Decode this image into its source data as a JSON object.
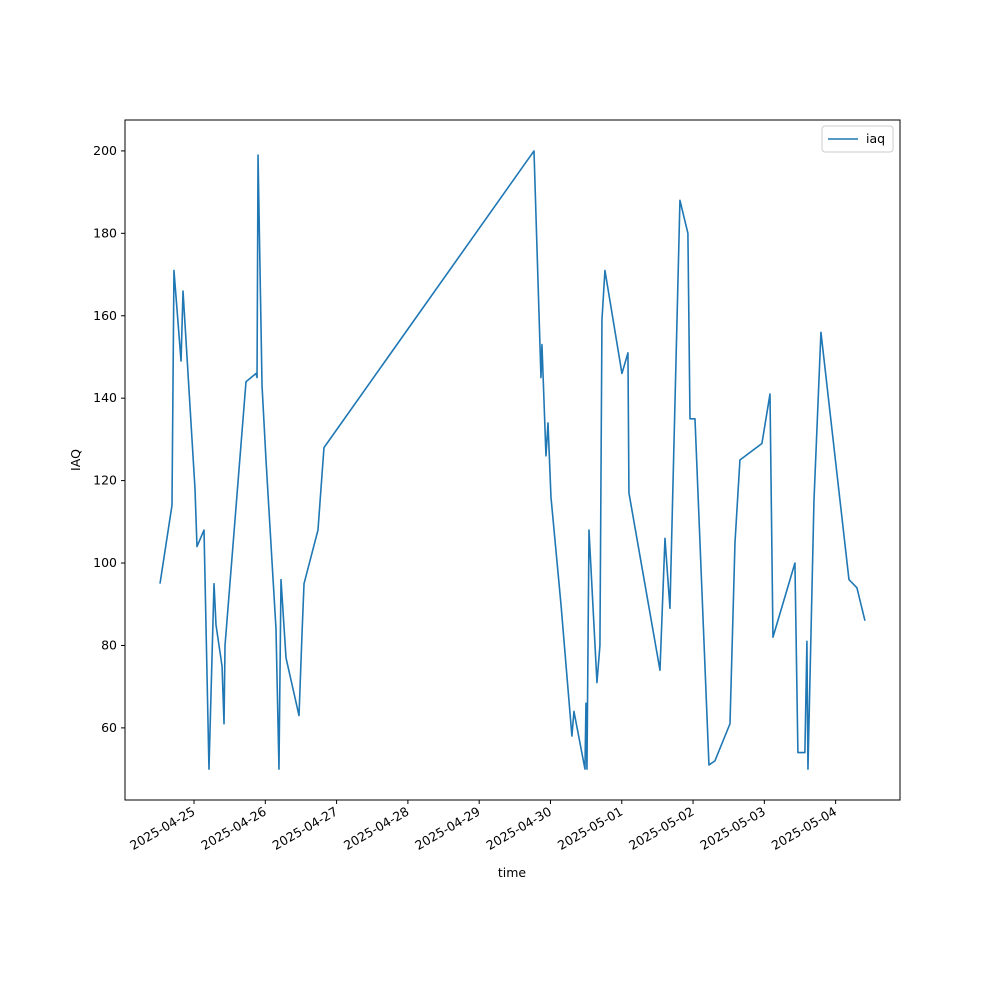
{
  "chart_data": {
    "type": "line",
    "x_label": "time",
    "y_label": "IAQ",
    "x": [
      "2025-04-24T12:33",
      "2025-04-24T16:35",
      "2025-04-24T17:15",
      "2025-04-24T19:38",
      "2025-04-24T20:18",
      "2025-04-25T00:20",
      "2025-04-25T01:00",
      "2025-04-25T03:22",
      "2025-04-25T05:02",
      "2025-04-25T06:44",
      "2025-04-25T07:24",
      "2025-04-25T09:26",
      "2025-04-25T10:06",
      "2025-04-25T10:26",
      "2025-04-25T17:30",
      "2025-04-25T20:53",
      "2025-04-25T21:13",
      "2025-04-25T21:33",
      "2025-04-25T22:54",
      "2025-04-26T00:14",
      "2025-04-26T03:36",
      "2025-04-26T04:36",
      "2025-04-26T05:17",
      "2025-04-26T06:58",
      "2025-04-26T11:21",
      "2025-04-26T12:22",
      "2025-04-26T13:02",
      "2025-04-26T17:44",
      "2025-04-26T19:45",
      "2025-04-29T18:27",
      "2025-04-29T20:48",
      "2025-04-29T21:08",
      "2025-04-29T22:29",
      "2025-04-29T23:10",
      "2025-04-30T00:10",
      "2025-04-30T03:32",
      "2025-04-30T07:13",
      "2025-04-30T07:54",
      "2025-04-30T11:37",
      "2025-04-30T11:57",
      "2025-04-30T12:17",
      "2025-04-30T12:58",
      "2025-04-30T15:39",
      "2025-04-30T16:39",
      "2025-04-30T17:20",
      "2025-04-30T18:20",
      "2025-05-01T00:04",
      "2025-05-01T02:05",
      "2025-05-01T02:25",
      "2025-05-01T12:52",
      "2025-05-01T14:33",
      "2025-05-01T16:13",
      "2025-05-01T19:35",
      "2025-05-01T22:16",
      "2025-05-01T22:58",
      "2025-05-02T00:39",
      "2025-05-02T05:21",
      "2025-05-02T07:22",
      "2025-05-02T12:26",
      "2025-05-02T14:07",
      "2025-05-02T15:47",
      "2025-05-02T23:11",
      "2025-05-03T01:54",
      "2025-05-03T02:54",
      "2025-05-03T10:18",
      "2025-05-03T11:18",
      "2025-05-03T13:39",
      "2025-05-03T14:20",
      "2025-05-03T14:41",
      "2025-05-03T16:42",
      "2025-05-03T19:03",
      "2025-05-04T04:29",
      "2025-05-04T07:10",
      "2025-05-04T09:52"
    ],
    "series": [
      {
        "name": "iaq",
        "color": "#1f77b4",
        "values": [
          95,
          114,
          171,
          149,
          166,
          118,
          104,
          108,
          50,
          95,
          85,
          75,
          61,
          80,
          144,
          146,
          145,
          199,
          143,
          125,
          84,
          50,
          96,
          77,
          63,
          83,
          95,
          108,
          128,
          200,
          145,
          153,
          126,
          134,
          116,
          90,
          58,
          64,
          50,
          66,
          50,
          108,
          71,
          80,
          159,
          171,
          146,
          151,
          117,
          74,
          106,
          89,
          188,
          180,
          135,
          135,
          51,
          52,
          61,
          105,
          125,
          129,
          141,
          82,
          100,
          54,
          54,
          81,
          50,
          115,
          156,
          96,
          94,
          86
        ]
      }
    ],
    "xlim": [
      "2025-04-24T00:46",
      "2025-05-04T21:40"
    ],
    "xticks": [
      "2025-04-25",
      "2025-04-26",
      "2025-04-27",
      "2025-04-28",
      "2025-04-29",
      "2025-04-30",
      "2025-05-01",
      "2025-05-02",
      "2025-05-03",
      "2025-05-04"
    ],
    "ylim": [
      42.5,
      207.5
    ],
    "yticks": [
      60,
      80,
      100,
      120,
      140,
      160,
      180,
      200
    ],
    "grid": false,
    "legend": "upper right"
  }
}
